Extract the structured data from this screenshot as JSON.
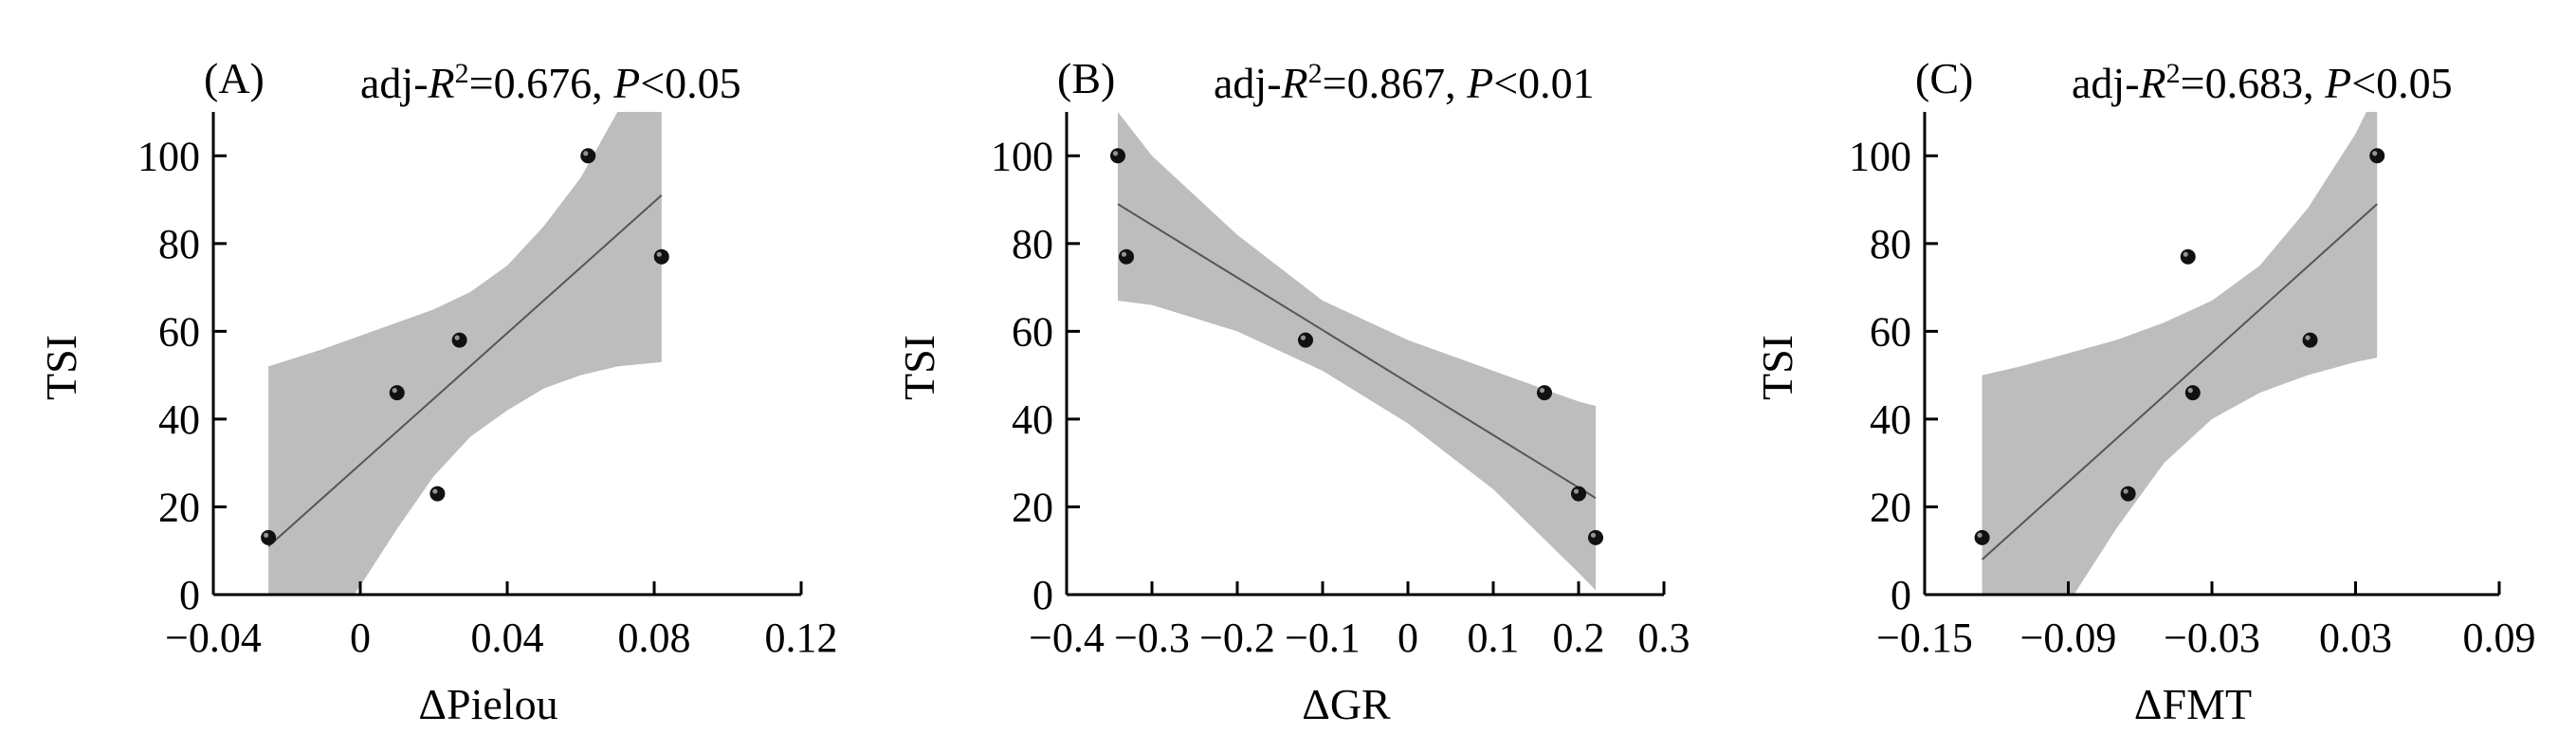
{
  "chart_data": [
    {
      "type": "scatter",
      "panel_label": "(A)",
      "stat_prefix": "adj-",
      "stat_r": "R",
      "stat_sup": "2",
      "stat_value": "=0.676, ",
      "stat_p": "P",
      "stat_p_value": "<0.05",
      "xlabel": "ΔPielou",
      "ylabel": "TSI",
      "xlim": [
        -0.04,
        0.12
      ],
      "ylim": [
        0,
        110
      ],
      "xticks": [
        -0.04,
        0,
        0.04,
        0.08,
        0.12
      ],
      "xtick_labels": [
        "−0.04",
        "0",
        "0.04",
        "0.08",
        "0.12"
      ],
      "yticks": [
        0,
        20,
        40,
        60,
        80,
        100
      ],
      "ytick_labels": [
        "0",
        "20",
        "40",
        "60",
        "80",
        "100"
      ],
      "points": [
        {
          "x": -0.025,
          "y": 13
        },
        {
          "x": 0.01,
          "y": 46
        },
        {
          "x": 0.021,
          "y": 23
        },
        {
          "x": 0.027,
          "y": 58
        },
        {
          "x": 0.062,
          "y": 100
        },
        {
          "x": 0.082,
          "y": 77
        }
      ],
      "fit": {
        "x": [
          -0.025,
          0.082
        ],
        "y": [
          11,
          91
        ]
      },
      "band": {
        "x": [
          -0.025,
          -0.01,
          0.0,
          0.01,
          0.02,
          0.03,
          0.04,
          0.05,
          0.06,
          0.07,
          0.082
        ],
        "upper": [
          52,
          56,
          59,
          62,
          65,
          69,
          75,
          84,
          95,
          110,
          130
        ],
        "lower": [
          -30,
          -10,
          2,
          15,
          27,
          36,
          42,
          47,
          50,
          52,
          53
        ]
      }
    },
    {
      "type": "scatter",
      "panel_label": "(B)",
      "stat_prefix": "adj-",
      "stat_r": "R",
      "stat_sup": "2",
      "stat_value": "=0.867, ",
      "stat_p": "P",
      "stat_p_value": "<0.01",
      "xlabel": "ΔGR",
      "ylabel": "TSI",
      "xlim": [
        -0.4,
        0.3
      ],
      "ylim": [
        0,
        110
      ],
      "xticks": [
        -0.4,
        -0.3,
        -0.2,
        -0.1,
        0,
        0.1,
        0.2,
        0.3
      ],
      "xtick_labels": [
        "−0.4",
        "−0.3",
        "−0.2",
        "−0.1",
        "0",
        "0.1",
        "0.2",
        "0.3"
      ],
      "yticks": [
        0,
        20,
        40,
        60,
        80,
        100
      ],
      "ytick_labels": [
        "0",
        "20",
        "40",
        "60",
        "80",
        "100"
      ],
      "points": [
        {
          "x": -0.34,
          "y": 100
        },
        {
          "x": -0.33,
          "y": 77
        },
        {
          "x": -0.12,
          "y": 58
        },
        {
          "x": 0.16,
          "y": 46
        },
        {
          "x": 0.2,
          "y": 23
        },
        {
          "x": 0.22,
          "y": 13
        }
      ],
      "fit": {
        "x": [
          -0.34,
          0.22
        ],
        "y": [
          89,
          22
        ]
      },
      "band": {
        "x": [
          -0.34,
          -0.3,
          -0.2,
          -0.1,
          0.0,
          0.1,
          0.2,
          0.22
        ],
        "upper": [
          110,
          100,
          82,
          67,
          58,
          51,
          44,
          43
        ],
        "lower": [
          67,
          66,
          60,
          51,
          39,
          24,
          5,
          1
        ]
      }
    },
    {
      "type": "scatter",
      "panel_label": "(C)",
      "stat_prefix": "adj-",
      "stat_r": "R",
      "stat_sup": "2",
      "stat_value": "=0.683, ",
      "stat_p": "P",
      "stat_p_value": "<0.05",
      "xlabel": "ΔFMT",
      "ylabel": "TSI",
      "xlim": [
        -0.15,
        0.09
      ],
      "ylim": [
        0,
        110
      ],
      "xticks": [
        -0.15,
        -0.09,
        -0.03,
        0.03,
        0.09
      ],
      "xtick_labels": [
        "−0.15",
        "−0.09",
        "−0.03",
        "0.03",
        "0.09"
      ],
      "yticks": [
        0,
        20,
        40,
        60,
        80,
        100
      ],
      "ytick_labels": [
        "0",
        "20",
        "40",
        "60",
        "80",
        "100"
      ],
      "points": [
        {
          "x": -0.126,
          "y": 13
        },
        {
          "x": -0.065,
          "y": 23
        },
        {
          "x": -0.04,
          "y": 77
        },
        {
          "x": -0.038,
          "y": 46
        },
        {
          "x": 0.011,
          "y": 58
        },
        {
          "x": 0.039,
          "y": 100
        }
      ],
      "fit": {
        "x": [
          -0.126,
          0.039
        ],
        "y": [
          8,
          89
        ]
      },
      "band": {
        "x": [
          -0.126,
          -0.11,
          -0.09,
          -0.07,
          -0.05,
          -0.03,
          -0.01,
          0.01,
          0.03,
          0.039
        ],
        "upper": [
          50,
          52,
          55,
          58,
          62,
          67,
          75,
          88,
          105,
          115
        ],
        "lower": [
          -35,
          -20,
          -2,
          15,
          30,
          40,
          46,
          50,
          53,
          54
        ]
      }
    }
  ]
}
